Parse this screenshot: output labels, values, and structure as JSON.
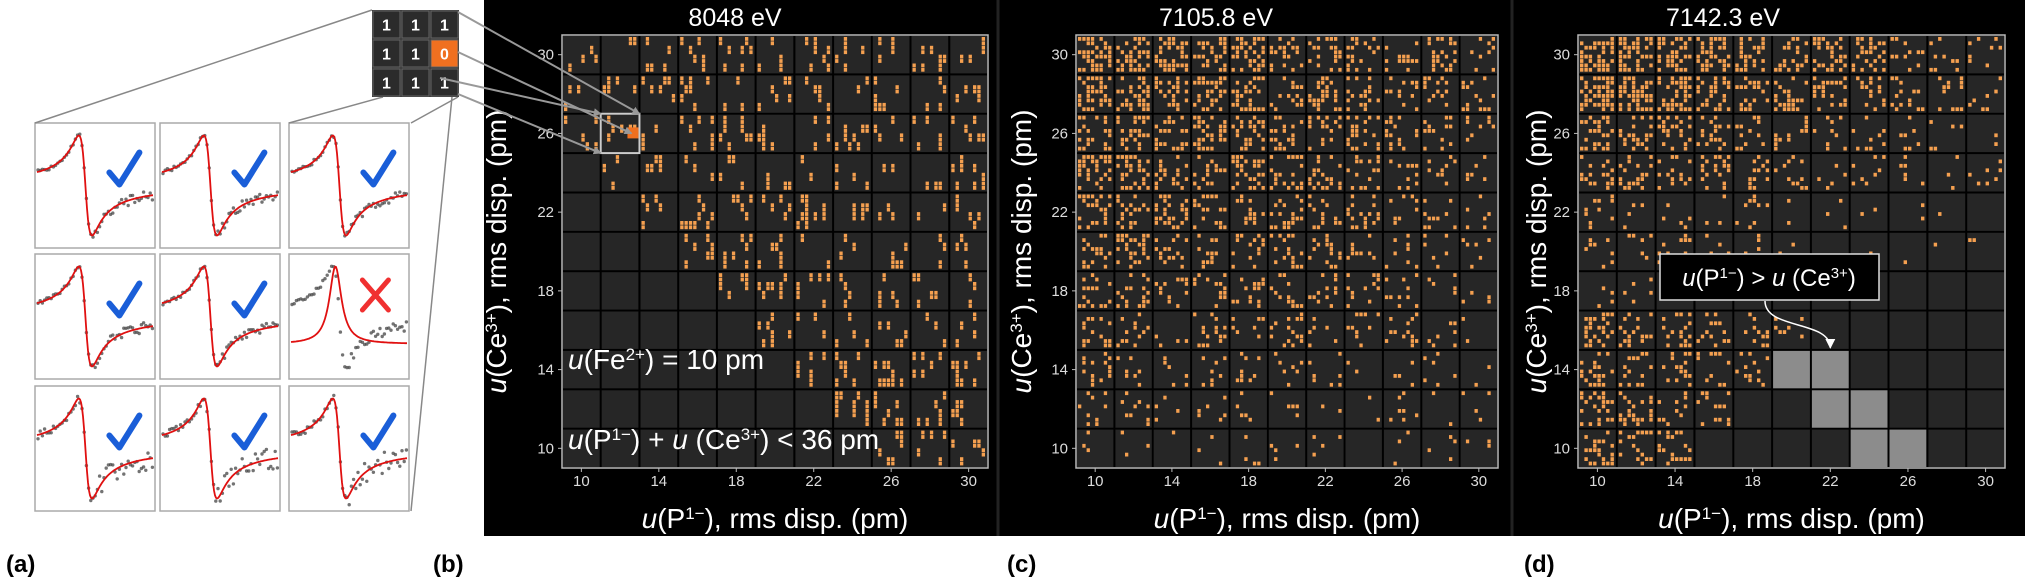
{
  "matrix": {
    "rows": [
      [
        1,
        1,
        1
      ],
      [
        1,
        1,
        0
      ],
      [
        1,
        1,
        1
      ]
    ]
  },
  "panel_labels": [
    "(a)",
    "(b)",
    "(c)",
    "(d)"
  ],
  "panels": [
    {
      "type": "heatmap",
      "title": "8048 eV",
      "xlim": [
        9,
        31
      ],
      "ylim": [
        9,
        31
      ],
      "xticks": [
        10,
        14,
        18,
        22,
        26,
        30
      ],
      "yticks": [
        10,
        14,
        18,
        22,
        26,
        30
      ],
      "xlabel": [
        {
          "t": "u",
          "i": true
        },
        {
          "t": "(P"
        },
        {
          "t": "1−",
          "sup": true
        },
        {
          "t": "), rms disp. (pm)"
        }
      ],
      "ylabel": [
        {
          "t": "u",
          "i": true
        },
        {
          "t": "(Ce"
        },
        {
          "t": "3+",
          "sup": true
        },
        {
          "t": "), rms disp. (pm)"
        }
      ],
      "annotations": [
        [
          {
            "t": "u",
            "i": true
          },
          {
            "t": "(Fe"
          },
          {
            "t": "2+",
            "sup": true
          },
          {
            "t": ") = 10 pm"
          }
        ],
        [
          {
            "t": "u",
            "i": true
          },
          {
            "t": "(P"
          },
          {
            "t": "1−",
            "sup": true
          },
          {
            "t": ") + "
          },
          {
            "t": "u",
            "i": true
          },
          {
            "t": " (Ce"
          },
          {
            "t": "3+",
            "sup": true
          },
          {
            "t": ") < 36 pm"
          }
        ]
      ]
    },
    {
      "type": "heatmap",
      "title": "7105.8 eV",
      "xlim": [
        9,
        31
      ],
      "ylim": [
        9,
        31
      ],
      "xticks": [
        10,
        14,
        18,
        22,
        26,
        30
      ],
      "yticks": [
        10,
        14,
        18,
        22,
        26,
        30
      ],
      "xlabel": [
        {
          "t": "u",
          "i": true
        },
        {
          "t": "(P"
        },
        {
          "t": "1−",
          "sup": true
        },
        {
          "t": "), rms disp. (pm)"
        }
      ],
      "ylabel": [
        {
          "t": "u",
          "i": true
        },
        {
          "t": "(Ce"
        },
        {
          "t": "3+",
          "sup": true
        },
        {
          "t": "), rms disp. (pm)"
        }
      ],
      "annotations": []
    },
    {
      "type": "heatmap",
      "title": "7142.3 eV",
      "xlim": [
        9,
        31
      ],
      "ylim": [
        9,
        31
      ],
      "xticks": [
        10,
        14,
        18,
        22,
        26,
        30
      ],
      "yticks": [
        10,
        14,
        18,
        22,
        26,
        30
      ],
      "xlabel": [
        {
          "t": "u",
          "i": true
        },
        {
          "t": "(P"
        },
        {
          "t": "1−",
          "sup": true
        },
        {
          "t": "), rms disp. (pm)"
        }
      ],
      "ylabel": [
        {
          "t": "u",
          "i": true
        },
        {
          "t": "(Ce"
        },
        {
          "t": "3+",
          "sup": true
        },
        {
          "t": "), rms disp. (pm)"
        }
      ],
      "annotations": [
        [
          {
            "t": "u",
            "i": true
          },
          {
            "t": "(P"
          },
          {
            "t": "1−",
            "sup": true
          },
          {
            "t": ") > "
          },
          {
            "t": "u",
            "i": true
          },
          {
            "t": " (Ce"
          },
          {
            "t": "3+",
            "sup": true
          },
          {
            "t": ")"
          }
        ]
      ],
      "highlight_cells": [
        {
          "x": 20,
          "y": 14
        },
        {
          "x": 22,
          "y": 14
        },
        {
          "x": 22,
          "y": 12
        },
        {
          "x": 24,
          "y": 12
        },
        {
          "x": 24,
          "y": 10
        },
        {
          "x": 26,
          "y": 10
        }
      ]
    }
  ]
}
